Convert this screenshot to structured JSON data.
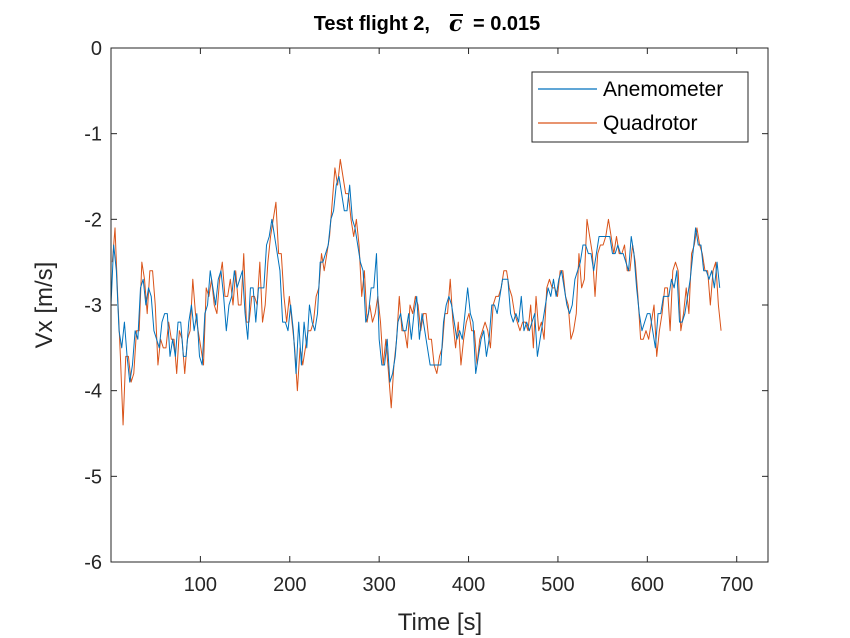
{
  "chart_data": {
    "type": "line",
    "title": {
      "prefix": "Test flight 2,",
      "symbol": "c",
      "suffix": "= 0.015"
    },
    "xlabel": "Time [s]",
    "ylabel": "Vx [m/s]",
    "xlim": [
      0,
      735
    ],
    "ylim": [
      -6,
      0
    ],
    "xticks": [
      100,
      200,
      300,
      400,
      500,
      600,
      700
    ],
    "xtick_labels": [
      "100",
      "200",
      "300",
      "400",
      "500",
      "600",
      "700"
    ],
    "yticks": [
      0,
      -1,
      -2,
      -3,
      -4,
      -5,
      -6
    ],
    "ytick_labels": [
      "0",
      "-1",
      "-2",
      "-3",
      "-4",
      "-5",
      "-6"
    ],
    "grid": false,
    "legend_position": "top-right",
    "sample_step_s": 3,
    "series": [
      {
        "name": "Anemometer",
        "color": "#0072BD",
        "x_start": 0,
        "values": [
          -3.0,
          -2.3,
          -2.6,
          -3.3,
          -3.5,
          -3.2,
          -3.6,
          -3.9,
          -3.7,
          -3.3,
          -3.4,
          -2.8,
          -2.7,
          -3.0,
          -2.8,
          -2.9,
          -3.3,
          -3.4,
          -3.5,
          -3.2,
          -3.1,
          -3.1,
          -3.6,
          -3.4,
          -3.6,
          -3.2,
          -3.2,
          -3.6,
          -3.6,
          -3.2,
          -3.0,
          -3.3,
          -3.1,
          -3.6,
          -3.7,
          -3.1,
          -3.0,
          -2.6,
          -2.8,
          -3.0,
          -2.7,
          -2.6,
          -2.9,
          -3.3,
          -3.0,
          -2.9,
          -2.6,
          -2.8,
          -2.7,
          -2.6,
          -3.1,
          -3.4,
          -2.8,
          -2.8,
          -3.2,
          -2.8,
          -2.8,
          -2.8,
          -2.3,
          -2.2,
          -2.0,
          -2.2,
          -2.4,
          -2.6,
          -3.2,
          -3.2,
          -3.3,
          -3.0,
          -3.3,
          -3.8,
          -3.2,
          -3.7,
          -3.2,
          -3.5,
          -3.0,
          -3.2,
          -3.3,
          -3.1,
          -2.5,
          -2.5,
          -2.4,
          -2.3,
          -2.0,
          -1.9,
          -1.6,
          -1.5,
          -1.7,
          -1.9,
          -1.9,
          -1.6,
          -2.0,
          -2.1,
          -2.3,
          -2.5,
          -2.6,
          -3.2,
          -3.1,
          -2.8,
          -2.8,
          -2.4,
          -3.4,
          -3.7,
          -3.7,
          -3.4,
          -3.9,
          -3.8,
          -3.6,
          -3.2,
          -3.1,
          -3.3,
          -3.3,
          -3.1,
          -3.4,
          -3.1,
          -2.9,
          -3.4,
          -3.1,
          -3.3,
          -3.5,
          -3.7,
          -3.7,
          -3.7,
          -3.7,
          -3.7,
          -3.2,
          -3.0,
          -2.9,
          -3.0,
          -3.2,
          -3.4,
          -3.3,
          -3.4,
          -3.1,
          -2.8,
          -3.1,
          -3.2,
          -3.8,
          -3.6,
          -3.4,
          -3.3,
          -3.6,
          -3.4,
          -3.0,
          -3.0,
          -3.1,
          -2.9,
          -2.7,
          -2.7,
          -2.7,
          -3.1,
          -3.2,
          -3.1,
          -3.2,
          -2.9,
          -3.3,
          -3.2,
          -3.3,
          -3.2,
          -3.1,
          -3.6,
          -3.4,
          -3.2,
          -3.0,
          -2.8,
          -2.9,
          -2.7,
          -2.9,
          -2.7,
          -2.6,
          -2.8,
          -3.0,
          -3.1,
          -3.0,
          -2.7,
          -2.6,
          -2.5,
          -2.3,
          -2.3,
          -2.4,
          -2.4,
          -2.6,
          -2.4,
          -2.2,
          -2.2,
          -2.2,
          -2.2,
          -2.2,
          -2.4,
          -2.4,
          -2.3,
          -2.4,
          -2.4,
          -2.5,
          -2.6,
          -2.2,
          -2.4,
          -2.8,
          -3.1,
          -3.3,
          -3.2,
          -3.1,
          -3.1,
          -3.3,
          -3.5,
          -3.1,
          -3.1,
          -2.9,
          -2.9,
          -2.9,
          -2.7,
          -2.8,
          -2.6,
          -3.2,
          -3.2,
          -3.1,
          -2.9,
          -2.7,
          -2.4,
          -2.1,
          -2.3,
          -2.3,
          -2.6,
          -2.6,
          -2.7,
          -2.6,
          -2.8,
          -2.5,
          -2.8
        ]
      },
      {
        "name": "Quadrotor",
        "color": "#D95319",
        "x_start": 1.5,
        "values": [
          -2.5,
          -2.1,
          -2.9,
          -3.6,
          -4.4,
          -3.6,
          -3.6,
          -3.9,
          -3.8,
          -3.3,
          -3.3,
          -2.5,
          -2.7,
          -3.1,
          -2.6,
          -2.6,
          -3.0,
          -3.7,
          -3.4,
          -3.5,
          -3.5,
          -3.2,
          -3.4,
          -3.4,
          -3.8,
          -3.3,
          -3.4,
          -3.8,
          -3.4,
          -3.3,
          -2.7,
          -3.1,
          -3.3,
          -3.5,
          -3.7,
          -2.8,
          -2.9,
          -2.7,
          -3.0,
          -3.1,
          -2.7,
          -2.5,
          -2.9,
          -2.9,
          -2.7,
          -3.0,
          -2.6,
          -3.0,
          -3.0,
          -2.4,
          -3.2,
          -3.2,
          -2.9,
          -2.9,
          -3.0,
          -2.5,
          -3.2,
          -3.0,
          -2.5,
          -2.2,
          -2.0,
          -1.8,
          -2.4,
          -2.4,
          -2.9,
          -3.2,
          -2.9,
          -3.2,
          -3.5,
          -4.0,
          -3.5,
          -3.7,
          -3.5,
          -3.3,
          -3.3,
          -3.2,
          -2.9,
          -2.8,
          -2.4,
          -2.6,
          -2.4,
          -2.2,
          -1.8,
          -1.4,
          -1.6,
          -1.3,
          -1.5,
          -1.7,
          -1.7,
          -2.0,
          -2.2,
          -2.0,
          -2.3,
          -2.9,
          -2.6,
          -3.2,
          -3.0,
          -3.2,
          -3.1,
          -2.9,
          -3.2,
          -3.7,
          -3.4,
          -3.8,
          -4.2,
          -3.7,
          -3.4,
          -2.9,
          -3.3,
          -3.3,
          -3.5,
          -3.0,
          -3.1,
          -2.9,
          -3.0,
          -3.3,
          -3.1,
          -3.1,
          -3.4,
          -3.4,
          -3.7,
          -3.8,
          -3.6,
          -3.5,
          -3.1,
          -3.1,
          -2.7,
          -3.2,
          -3.5,
          -3.2,
          -3.7,
          -3.4,
          -3.2,
          -3.1,
          -3.3,
          -3.3,
          -3.7,
          -3.4,
          -3.3,
          -3.2,
          -3.3,
          -3.5,
          -3.0,
          -2.9,
          -2.9,
          -2.8,
          -2.6,
          -2.6,
          -2.8,
          -2.9,
          -3.1,
          -3.2,
          -3.3,
          -3.2,
          -3.2,
          -3.3,
          -3.0,
          -3.5,
          -2.9,
          -3.3,
          -3.2,
          -3.4,
          -2.8,
          -2.7,
          -2.8,
          -2.8,
          -2.9,
          -2.6,
          -2.6,
          -2.9,
          -3.0,
          -3.4,
          -3.3,
          -3.1,
          -2.4,
          -2.8,
          -2.7,
          -2.0,
          -2.2,
          -2.4,
          -2.9,
          -2.4,
          -2.3,
          -2.3,
          -2.2,
          -2.0,
          -2.2,
          -2.4,
          -2.2,
          -2.4,
          -2.4,
          -2.3,
          -2.6,
          -2.6,
          -2.3,
          -2.5,
          -2.9,
          -3.4,
          -3.4,
          -3.3,
          -3.4,
          -3.2,
          -3.0,
          -3.6,
          -3.3,
          -3.1,
          -2.8,
          -2.8,
          -3.3,
          -2.6,
          -2.5,
          -2.6,
          -3.3,
          -3.1,
          -2.8,
          -3.1,
          -2.4,
          -2.3,
          -2.1,
          -2.3,
          -2.4,
          -2.6,
          -2.6,
          -3.0,
          -2.6,
          -2.5,
          -3.0,
          -3.3
        ]
      }
    ]
  }
}
